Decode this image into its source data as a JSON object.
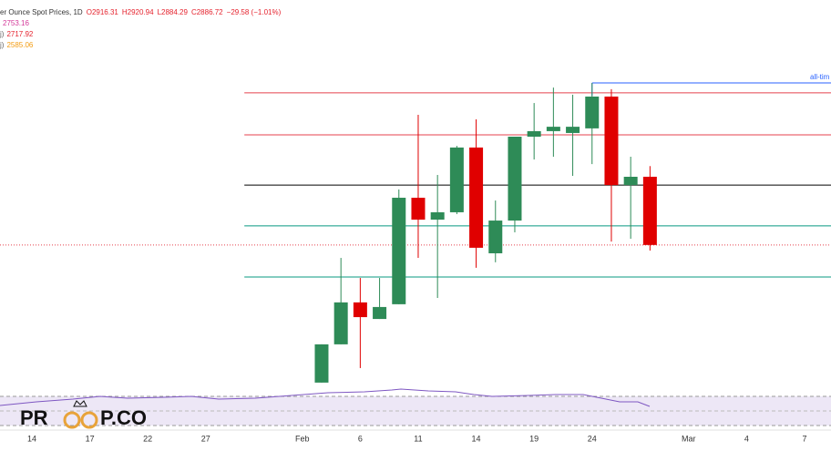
{
  "chart_data": {
    "type": "candlestick",
    "header": {
      "title": "er Ounce Spot Prices, 1D",
      "values": [
        "O2916.31",
        "H2920.94",
        "L2884.29",
        "C2886.72",
        "−29.58 (−1.01%)"
      ],
      "color": "#e5222d"
    },
    "indicators": [
      {
        "prefix": "",
        "text": "2753.16",
        "color": "#d4399a"
      },
      {
        "prefix": "j)",
        "text": "2717.92",
        "color": "#e5222d"
      },
      {
        "prefix": "j)",
        "text": "2585.06",
        "color": "#f39c12"
      }
    ],
    "logo": {
      "left": "PR",
      "right": "P.CO"
    },
    "x": [
      0,
      1,
      2,
      3,
      4,
      5,
      6,
      7,
      8,
      9,
      10,
      11,
      12,
      13,
      14,
      15,
      16,
      17
    ],
    "open": [
      2827.0,
      2843.6,
      2861.8,
      2854.6,
      2861.0,
      2907.2,
      2897.7,
      2900.9,
      2929.0,
      2883.1,
      2897.3,
      2933.7,
      2936.1,
      2935.3,
      2937.3,
      2951.1,
      2912.7,
      2916.31
    ],
    "close": [
      2843.6,
      2861.8,
      2855.4,
      2859.8,
      2907.2,
      2897.7,
      2900.9,
      2929.0,
      2885.5,
      2897.3,
      2933.7,
      2936.1,
      2938.0,
      2938.0,
      2951.1,
      2912.7,
      2916.3,
      2886.72
    ],
    "high": [
      2843.6,
      2881.1,
      2872.4,
      2872.4,
      2910.8,
      2943.2,
      2917.1,
      2929.7,
      2941.2,
      2906.0,
      2933.7,
      2948.3,
      2955.0,
      2951.9,
      2957.0,
      2954.3,
      2925.0,
      2920.94
    ],
    "low": [
      2827.0,
      2843.6,
      2833.3,
      2854.6,
      2861.0,
      2881.1,
      2863.7,
      2900.1,
      2876.8,
      2879.2,
      2892.2,
      2923.8,
      2925.0,
      2916.7,
      2921.8,
      2888.2,
      2889.4,
      2884.29
    ],
    "up_color": "#2e8b57",
    "down_color": "#e00000",
    "levels": [
      {
        "value": 2952.7,
        "color": "#e5404e",
        "x_start": -4
      },
      {
        "value": 2934.5,
        "color": "#e5404e",
        "x_start": -4
      },
      {
        "value": 2912.7,
        "color": "#000000",
        "x_start": -4
      },
      {
        "value": 2895.0,
        "color": "#089981",
        "x_start": -4
      },
      {
        "value": 2872.8,
        "color": "#089981",
        "x_start": -4
      },
      {
        "value": 2886.72,
        "color": "#e5404e",
        "style": "dotted"
      }
    ],
    "ath_line": {
      "value": 2957.0,
      "x_start": 14,
      "label": "all-tim",
      "color": "#2962ff"
    },
    "xlim": [
      -16.65,
      26.37
    ],
    "ylim": [
      2823,
      2993
    ],
    "xticks": [
      {
        "value": -15,
        "label": "14"
      },
      {
        "value": -12,
        "label": "17"
      },
      {
        "value": -9,
        "label": "22"
      },
      {
        "value": -6,
        "label": "27"
      },
      {
        "value": -1,
        "label": "Feb"
      },
      {
        "value": 2,
        "label": "6"
      },
      {
        "value": 5,
        "label": "11"
      },
      {
        "value": 8,
        "label": "14"
      },
      {
        "value": 11,
        "label": "19"
      },
      {
        "value": 14,
        "label": "24"
      },
      {
        "value": 19,
        "label": "Mar"
      },
      {
        "value": 22,
        "label": "4"
      },
      {
        "value": 25,
        "label": "7"
      }
    ]
  }
}
